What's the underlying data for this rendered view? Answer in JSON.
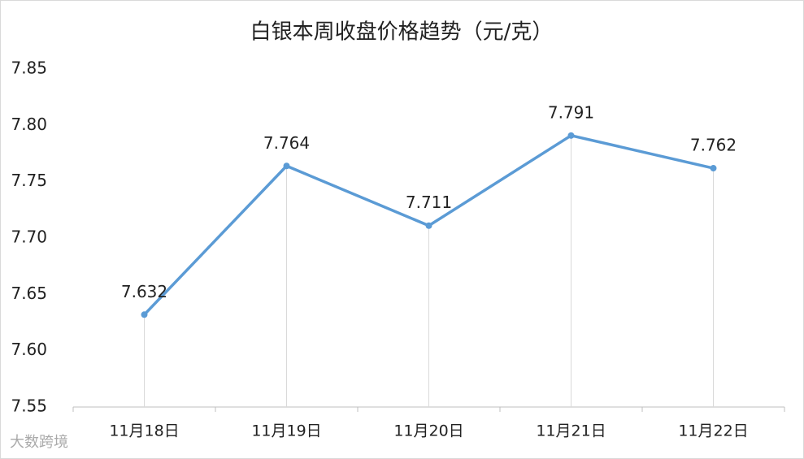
{
  "chart_data": {
    "type": "line",
    "title": "白银本周收盘价格趋势（元/克）",
    "categories": [
      "11月18日",
      "11月19日",
      "11月20日",
      "11月21日",
      "11月22日"
    ],
    "series": [
      {
        "name": "收盘价格",
        "color": "#5b9bd5",
        "values": [
          7.632,
          7.764,
          7.711,
          7.791,
          7.762
        ]
      }
    ],
    "ylim": [
      7.55,
      7.85
    ],
    "yticks": [
      7.55,
      {
        "value": 7.6,
        "label": "7.60"
      },
      7.65,
      {
        "value": 7.7,
        "label": "7.70"
      },
      7.75,
      {
        "value": 7.8,
        "label": "7.80"
      },
      7.85
    ],
    "drop_lines": true,
    "watermark": "大数跨境"
  }
}
